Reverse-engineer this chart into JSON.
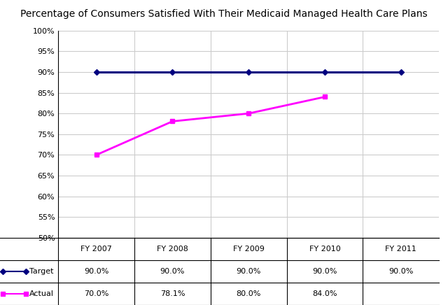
{
  "title": "Percentage of Consumers Satisfied With Their Medicaid Managed Health Care Plans",
  "categories": [
    "FY 2007",
    "FY 2008",
    "FY 2009",
    "FY 2010",
    "FY 2011"
  ],
  "target_values": [
    90.0,
    90.0,
    90.0,
    90.0,
    90.0
  ],
  "actual_values": [
    70.0,
    78.1,
    80.0,
    84.0,
    null
  ],
  "target_color": "#000080",
  "actual_color": "#FF00FF",
  "ylim": [
    50,
    100
  ],
  "yticks": [
    50,
    55,
    60,
    65,
    70,
    75,
    80,
    85,
    90,
    95,
    100
  ],
  "target_label": "Target",
  "actual_label": "Actual",
  "table_target": [
    "90.0%",
    "90.0%",
    "90.0%",
    "90.0%",
    "90.0%"
  ],
  "table_actual": [
    "70.0%",
    "78.1%",
    "80.0%",
    "84.0%",
    ""
  ],
  "bg_color": "#FFFFFF",
  "grid_color": "#CCCCCC",
  "title_fontsize": 10,
  "tick_fontsize": 8,
  "table_fontsize": 8
}
